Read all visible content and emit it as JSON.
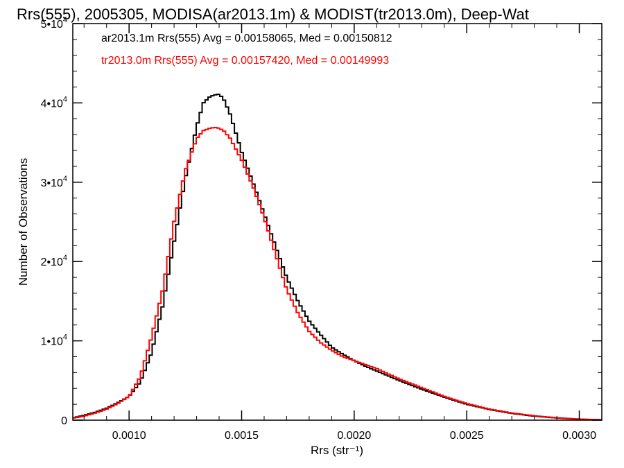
{
  "chart_data": {
    "type": "line",
    "title": "Rrs(555), 2005305, MODISA(ar2013.1m) & MODIST(tr2013.0m), Deep-Wat",
    "xlabel": "Rrs (str⁻¹)",
    "ylabel": "Number of Observations",
    "xlim": [
      0.00075,
      0.0031
    ],
    "ylim": [
      0,
      50000
    ],
    "x_ticks": [
      {
        "value": 0.001,
        "label": "0.0010"
      },
      {
        "value": 0.0015,
        "label": "0.0015"
      },
      {
        "value": 0.002,
        "label": "0.0020"
      },
      {
        "value": 0.0025,
        "label": "0.0025"
      },
      {
        "value": 0.003,
        "label": "0.0030"
      }
    ],
    "y_ticks": [
      {
        "value": 0,
        "label": "0",
        "exp": ""
      },
      {
        "value": 10000,
        "label": "1•10",
        "exp": "4"
      },
      {
        "value": 20000,
        "label": "2•10",
        "exp": "4"
      },
      {
        "value": 30000,
        "label": "3•10",
        "exp": "4"
      },
      {
        "value": 40000,
        "label": "4•10",
        "exp": "4"
      },
      {
        "value": 50000,
        "label": "5•10",
        "exp": "4"
      }
    ],
    "grid": false,
    "legend_placement": "top-left",
    "annotations": [
      {
        "text": "ar2013.1m Rrs(555) Avg = 0.00158065, Med = 0.00150812",
        "color": "#000000"
      },
      {
        "text": "tr2013.0m Rrs(555) Avg = 0.00157420, Med = 0.00149993",
        "color": "#ff0000"
      }
    ],
    "series": [
      {
        "color": "#000000",
        "x": [
          0.00075,
          0.0008,
          0.00085,
          0.0009,
          0.00095,
          0.001,
          0.00105,
          0.0011,
          0.00115,
          0.0012,
          0.00125,
          0.0013,
          0.00133,
          0.00136,
          0.00138,
          0.0014,
          0.00142,
          0.00145,
          0.0015,
          0.00155,
          0.0016,
          0.00165,
          0.0017,
          0.00175,
          0.0018,
          0.00185,
          0.0019,
          0.00195,
          0.002,
          0.00205,
          0.0021,
          0.0022,
          0.0023,
          0.0024,
          0.0025,
          0.0026,
          0.0027,
          0.0028,
          0.0029,
          0.003,
          0.0031
        ],
        "y": [
          300,
          600,
          1000,
          1500,
          2200,
          3000,
          4800,
          8500,
          14500,
          22500,
          30500,
          37000,
          40000,
          40800,
          41000,
          41100,
          40500,
          38500,
          33800,
          30000,
          26000,
          22000,
          18000,
          15000,
          12500,
          10800,
          9200,
          8300,
          7500,
          6800,
          6200,
          5000,
          3900,
          2900,
          2000,
          1350,
          850,
          500,
          280,
          120,
          50
        ]
      },
      {
        "color": "#ff0000",
        "x": [
          0.00075,
          0.0008,
          0.00085,
          0.0009,
          0.00095,
          0.001,
          0.00105,
          0.0011,
          0.00115,
          0.0012,
          0.00125,
          0.0013,
          0.00133,
          0.00136,
          0.00138,
          0.0014,
          0.00142,
          0.00145,
          0.0015,
          0.00155,
          0.0016,
          0.00165,
          0.0017,
          0.00175,
          0.0018,
          0.00185,
          0.0019,
          0.00195,
          0.002,
          0.00205,
          0.0021,
          0.0022,
          0.0023,
          0.0024,
          0.0025,
          0.0026,
          0.0027,
          0.0028,
          0.0029,
          0.003,
          0.0031
        ],
        "y": [
          250,
          500,
          900,
          1400,
          2100,
          3000,
          5500,
          10500,
          16500,
          25000,
          31500,
          35500,
          36500,
          36800,
          36900,
          36800,
          36500,
          35500,
          32800,
          29500,
          25500,
          21000,
          16500,
          13500,
          11200,
          9800,
          8800,
          8000,
          7500,
          7000,
          6500,
          5200,
          4100,
          3000,
          2100,
          1400,
          900,
          550,
          300,
          130,
          50
        ]
      }
    ]
  }
}
